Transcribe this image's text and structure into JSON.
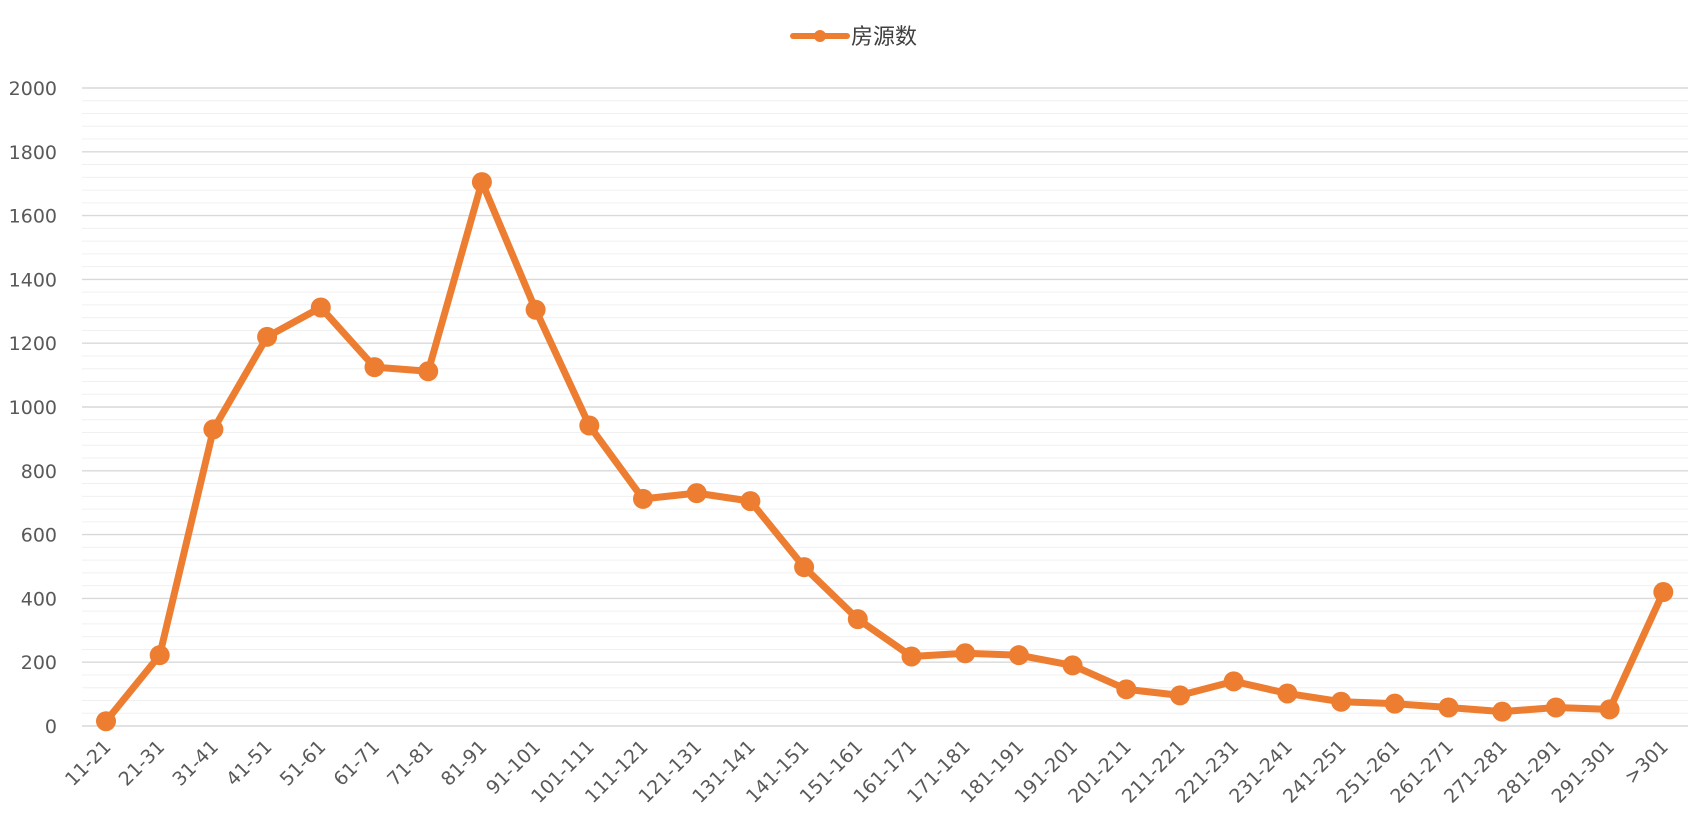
{
  "chart_data": {
    "type": "line",
    "categories": [
      "11-21",
      "21-31",
      "31-41",
      "41-51",
      "51-61",
      "61-71",
      "71-81",
      "81-91",
      "91-101",
      "101-111",
      "111-121",
      "121-131",
      "131-141",
      "141-151",
      "151-161",
      "161-171",
      "171-181",
      "181-191",
      "191-201",
      "201-211",
      "211-221",
      "221-231",
      "231-241",
      "241-251",
      "251-261",
      "261-271",
      "271-281",
      "281-291",
      "291-301",
      ">301"
    ],
    "series": [
      {
        "name": "房源数",
        "color": "#ED7D31",
        "values": [
          15,
          222,
          930,
          1220,
          1312,
          1125,
          1112,
          1705,
          1305,
          942,
          712,
          730,
          705,
          498,
          335,
          218,
          228,
          222,
          190,
          115,
          96,
          140,
          102,
          76,
          70,
          58,
          45,
          58,
          52,
          420
        ]
      }
    ],
    "yticks": [
      "0",
      "200",
      "400",
      "600",
      "800",
      "1000",
      "1200",
      "1400",
      "1600",
      "1800",
      "2000"
    ],
    "ylim": [
      0,
      2000
    ],
    "legend_position": "top-center",
    "grid": true
  }
}
